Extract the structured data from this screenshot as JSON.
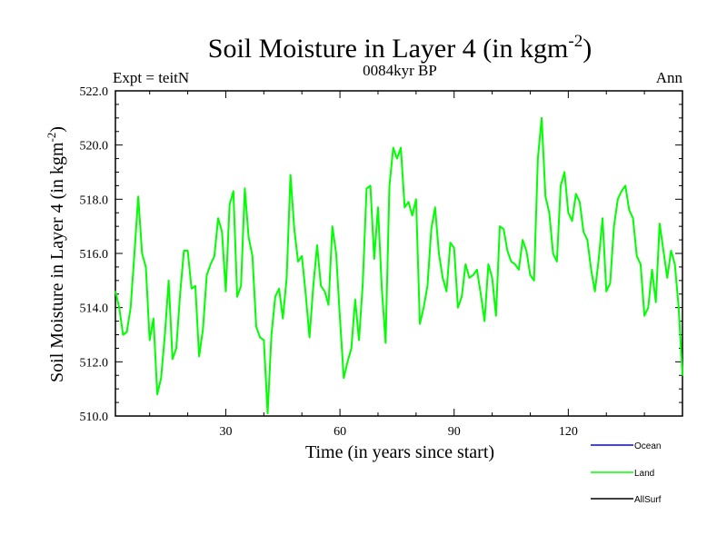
{
  "chart_data": {
    "type": "line",
    "title": "Soil Moisture in Layer 4 (in kgm",
    "title_superscript": "-2",
    "title_suffix": ")",
    "subtitle_left": "Expt = teitN",
    "subtitle_center": "0084kyr BP",
    "subtitle_right": "Ann",
    "xlabel": "Time (in years since start)",
    "ylabel": "Soil Moisture in Layer 4 (in kgm",
    "ylabel_superscript": "-2",
    "ylabel_suffix": ")",
    "xlim": [
      1,
      150
    ],
    "ylim": [
      510,
      522
    ],
    "xticks": [
      30,
      60,
      90,
      120
    ],
    "xtick_labels": [
      "30",
      "60",
      "90",
      "120"
    ],
    "yticks": [
      510,
      512,
      514,
      516,
      518,
      520,
      522
    ],
    "ytick_labels": [
      "510.0",
      "512.0",
      "514.0",
      "516.0",
      "518.0",
      "520.0",
      "522.0"
    ],
    "legend": [
      {
        "name": "Ocean",
        "color": "#0000ff"
      },
      {
        "name": "Land",
        "color": "#00ff00"
      },
      {
        "name": "AllSurf",
        "color": "#000000"
      }
    ],
    "series": [
      {
        "name": "Land",
        "color": "#00ff00",
        "x_start": 1,
        "x_step": 1,
        "values": [
          514.6,
          514.0,
          513.0,
          513.1,
          514.0,
          516.0,
          518.1,
          516.0,
          515.5,
          512.8,
          513.6,
          510.8,
          511.4,
          513.0,
          515.0,
          512.1,
          512.5,
          514.5,
          516.1,
          516.1,
          514.7,
          514.8,
          512.2,
          513.2,
          515.2,
          515.6,
          515.9,
          517.3,
          516.8,
          514.6,
          517.8,
          518.3,
          514.4,
          514.8,
          518.4,
          516.6,
          515.9,
          513.3,
          512.9,
          512.8,
          510.1,
          513.0,
          514.4,
          514.7,
          513.6,
          515.1,
          518.9,
          516.9,
          515.7,
          515.9,
          514.5,
          512.9,
          514.8,
          516.3,
          514.8,
          514.6,
          514.1,
          517.0,
          516.0,
          513.6,
          511.4,
          512.0,
          512.5,
          514.3,
          512.8,
          514.9,
          518.4,
          518.5,
          515.8,
          517.7,
          514.7,
          512.7,
          518.5,
          519.9,
          519.5,
          519.9,
          517.7,
          517.9,
          517.4,
          518.0,
          513.4,
          514.0,
          514.8,
          516.9,
          517.7,
          516.0,
          515.1,
          514.6,
          516.4,
          516.2,
          514.0,
          514.4,
          515.6,
          515.1,
          515.2,
          515.4,
          514.5,
          513.5,
          515.6,
          515.1,
          513.7,
          517.0,
          516.9,
          516.1,
          515.7,
          515.6,
          515.4,
          516.5,
          516.1,
          515.2,
          515.0,
          519.5,
          521.0,
          518.1,
          517.5,
          516.0,
          515.7,
          518.5,
          519.0,
          517.5,
          517.2,
          518.2,
          517.9,
          516.8,
          516.5,
          515.4,
          514.6,
          515.8,
          517.3,
          514.6,
          514.9,
          517.0,
          518.0,
          518.3,
          518.5,
          517.6,
          517.3,
          515.9,
          515.6,
          513.7,
          514.0,
          515.4,
          514.2,
          517.1,
          516.1,
          515.1,
          516.1,
          515.6,
          514.0,
          511.5
        ]
      }
    ]
  }
}
